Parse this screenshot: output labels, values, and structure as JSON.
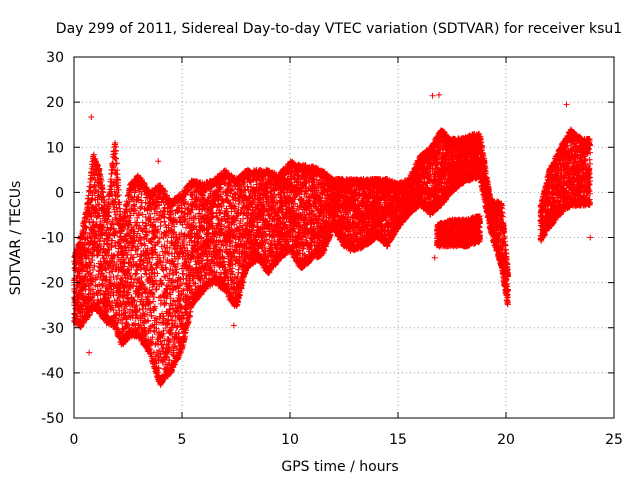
{
  "chart_data": {
    "type": "scatter",
    "title": "Day 299 of 2011, Sidereal Day-to-day VTEC variation (SDTVAR) for receiver ksu1",
    "xlabel": "GPS time / hours",
    "ylabel": "SDTVAR / TECUs",
    "xlim": [
      0,
      25
    ],
    "ylim": [
      -50,
      30
    ],
    "xticks": [
      0,
      5,
      10,
      15,
      20,
      25
    ],
    "yticks": [
      -50,
      -40,
      -30,
      -20,
      -10,
      0,
      10,
      20,
      30
    ],
    "xtick_labels": [
      "0",
      "5",
      "10",
      "15",
      "20",
      "25"
    ],
    "ytick_labels": [
      "-50",
      "-40",
      "-30",
      "-20",
      "-10",
      "0",
      "10",
      "20",
      "30"
    ],
    "grid": true,
    "marker": "plus",
    "color": "#ff0000",
    "series": [
      {
        "name": "SDTVAR",
        "envelope": [
          {
            "x": 0.0,
            "low": -29,
            "high": -14
          },
          {
            "x": 0.3,
            "low": -30,
            "high": -10
          },
          {
            "x": 0.6,
            "low": -28,
            "high": -3
          },
          {
            "x": 0.9,
            "low": -26,
            "high": 9
          },
          {
            "x": 1.2,
            "low": -27,
            "high": 5
          },
          {
            "x": 1.5,
            "low": -29,
            "high": -5
          },
          {
            "x": 1.9,
            "low": -30,
            "high": 12
          },
          {
            "x": 2.2,
            "low": -34,
            "high": -8
          },
          {
            "x": 2.6,
            "low": -32,
            "high": 2
          },
          {
            "x": 3.0,
            "low": -32,
            "high": 4
          },
          {
            "x": 3.5,
            "low": -36,
            "high": 0
          },
          {
            "x": 4.0,
            "low": -43,
            "high": 2
          },
          {
            "x": 4.5,
            "low": -40,
            "high": -2
          },
          {
            "x": 5.0,
            "low": -35,
            "high": 0
          },
          {
            "x": 5.5,
            "low": -25,
            "high": 3
          },
          {
            "x": 6.0,
            "low": -22,
            "high": 2
          },
          {
            "x": 6.5,
            "low": -20,
            "high": 3
          },
          {
            "x": 7.0,
            "low": -22,
            "high": 5
          },
          {
            "x": 7.5,
            "low": -26,
            "high": 3
          },
          {
            "x": 8.0,
            "low": -17,
            "high": 5
          },
          {
            "x": 8.5,
            "low": -15,
            "high": 5
          },
          {
            "x": 9.0,
            "low": -18,
            "high": 5
          },
          {
            "x": 9.5,
            "low": -15,
            "high": 4
          },
          {
            "x": 10.0,
            "low": -13,
            "high": 7
          },
          {
            "x": 10.5,
            "low": -17,
            "high": 6
          },
          {
            "x": 11.0,
            "low": -15,
            "high": 6
          },
          {
            "x": 11.5,
            "low": -14,
            "high": 5
          },
          {
            "x": 12.0,
            "low": -8,
            "high": 3
          },
          {
            "x": 12.5,
            "low": -12,
            "high": 3
          },
          {
            "x": 13.0,
            "low": -13,
            "high": 3
          },
          {
            "x": 13.5,
            "low": -12,
            "high": 3
          },
          {
            "x": 14.0,
            "low": -10,
            "high": 3
          },
          {
            "x": 14.5,
            "low": -12,
            "high": 3
          },
          {
            "x": 15.0,
            "low": -8,
            "high": 2
          },
          {
            "x": 15.5,
            "low": -5,
            "high": 3
          },
          {
            "x": 16.0,
            "low": -3,
            "high": 8
          },
          {
            "x": 16.5,
            "low": -5,
            "high": 10
          },
          {
            "x": 17.0,
            "low": -3,
            "high": 14
          },
          {
            "x": 17.5,
            "low": 0,
            "high": 12
          },
          {
            "x": 18.0,
            "low": 2,
            "high": 12
          },
          {
            "x": 18.5,
            "low": 3,
            "high": 13
          },
          {
            "x": 18.8,
            "low": 3,
            "high": 13
          },
          {
            "x": 19.3,
            "low": -9,
            "high": -2
          },
          {
            "x": 19.8,
            "low": -17,
            "high": -2
          },
          {
            "x": 20.1,
            "low": -26,
            "high": -18
          },
          {
            "x": 21.6,
            "low": -11,
            "high": -3
          },
          {
            "x": 22.0,
            "low": -8,
            "high": 5
          },
          {
            "x": 22.5,
            "low": -5,
            "high": 10
          },
          {
            "x": 23.0,
            "low": -3,
            "high": 14
          },
          {
            "x": 23.5,
            "low": -3,
            "high": 12
          },
          {
            "x": 23.9,
            "low": -3,
            "high": 12
          }
        ],
        "branches": [
          {
            "x": 16.8,
            "low": -12,
            "high": -7
          },
          {
            "x": 17.5,
            "low": -12,
            "high": -6
          },
          {
            "x": 18.2,
            "low": -12,
            "high": -6
          },
          {
            "x": 18.8,
            "low": -11,
            "high": -5
          }
        ],
        "spikes": [
          {
            "x": 0.8,
            "y": 16.7
          },
          {
            "x": 0.7,
            "y": -35.5
          },
          {
            "x": 3.9,
            "y": 6.9
          },
          {
            "x": 16.6,
            "y": 21.4
          },
          {
            "x": 16.9,
            "y": 21.6
          },
          {
            "x": 23.9,
            "y": -10
          },
          {
            "x": 22.8,
            "y": 19.5
          },
          {
            "x": 7.4,
            "y": -29.5
          },
          {
            "x": 12.8,
            "y": -13
          },
          {
            "x": 16.7,
            "y": -14.5
          }
        ]
      }
    ]
  }
}
